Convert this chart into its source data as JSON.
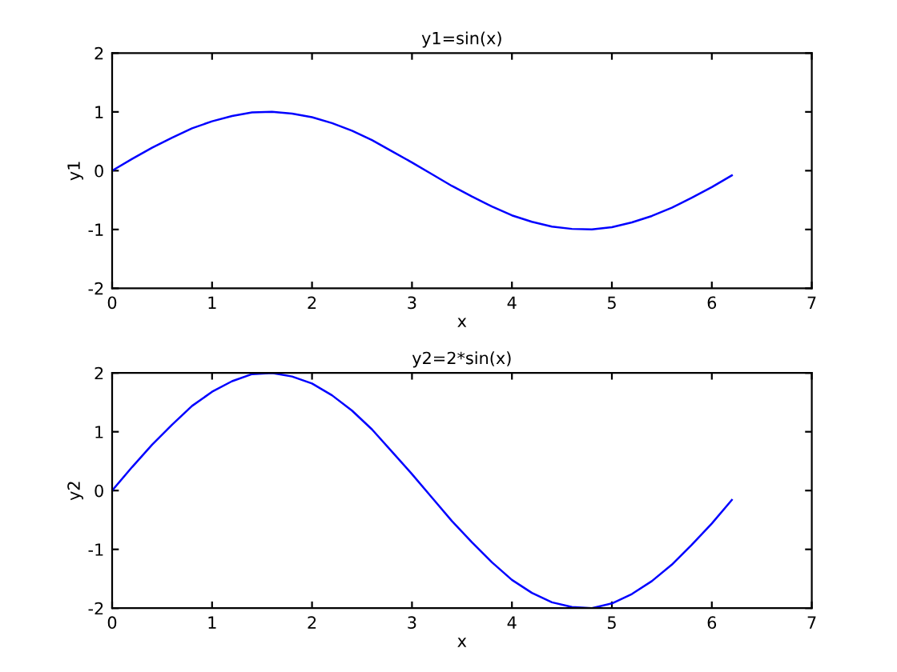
{
  "chart_data": [
    {
      "type": "line",
      "title": "y1=sin(x)",
      "xlabel": "x",
      "ylabel": "y1",
      "xlim": [
        0,
        7
      ],
      "xticks": [
        0,
        1,
        2,
        3,
        4,
        5,
        6,
        7
      ],
      "ylim": [
        -2,
        2
      ],
      "yticks": [
        -2,
        -1,
        0,
        1,
        2
      ],
      "grid": false,
      "legend": false,
      "x": [
        0,
        0.2,
        0.4,
        0.6,
        0.8,
        1.0,
        1.2,
        1.4,
        1.6,
        1.8,
        2.0,
        2.2,
        2.4,
        2.6,
        2.8,
        3.0,
        3.2,
        3.4,
        3.6,
        3.8,
        4.0,
        4.2,
        4.4,
        4.6,
        4.8,
        5.0,
        5.2,
        5.4,
        5.6,
        5.8,
        6.0,
        6.2
      ],
      "series": [
        {
          "color": "#0000ff",
          "values": [
            0,
            0.2,
            0.39,
            0.56,
            0.72,
            0.84,
            0.93,
            0.99,
            1.0,
            0.97,
            0.91,
            0.81,
            0.68,
            0.52,
            0.33,
            0.14,
            -0.06,
            -0.26,
            -0.44,
            -0.61,
            -0.76,
            -0.87,
            -0.95,
            -0.99,
            -1.0,
            -0.96,
            -0.88,
            -0.77,
            -0.63,
            -0.46,
            -0.28,
            -0.08
          ]
        }
      ]
    },
    {
      "type": "line",
      "title": "y2=2*sin(x)",
      "xlabel": "x",
      "ylabel": "y2",
      "xlim": [
        0,
        7
      ],
      "xticks": [
        0,
        1,
        2,
        3,
        4,
        5,
        6,
        7
      ],
      "ylim": [
        -2,
        2
      ],
      "yticks": [
        -2,
        -1,
        0,
        1,
        2
      ],
      "grid": false,
      "legend": false,
      "x": [
        0,
        0.2,
        0.4,
        0.6,
        0.8,
        1.0,
        1.2,
        1.4,
        1.6,
        1.8,
        2.0,
        2.2,
        2.4,
        2.6,
        2.8,
        3.0,
        3.2,
        3.4,
        3.6,
        3.8,
        4.0,
        4.2,
        4.4,
        4.6,
        4.8,
        5.0,
        5.2,
        5.4,
        5.6,
        5.8,
        6.0,
        6.2
      ],
      "series": [
        {
          "color": "#0000ff",
          "values": [
            0,
            0.4,
            0.78,
            1.12,
            1.44,
            1.68,
            1.86,
            1.98,
            2.0,
            1.94,
            1.82,
            1.62,
            1.36,
            1.04,
            0.66,
            0.28,
            -0.12,
            -0.52,
            -0.88,
            -1.22,
            -1.52,
            -1.74,
            -1.9,
            -1.98,
            -2.0,
            -1.92,
            -1.76,
            -1.54,
            -1.26,
            -0.92,
            -0.56,
            -0.16
          ]
        }
      ]
    }
  ]
}
